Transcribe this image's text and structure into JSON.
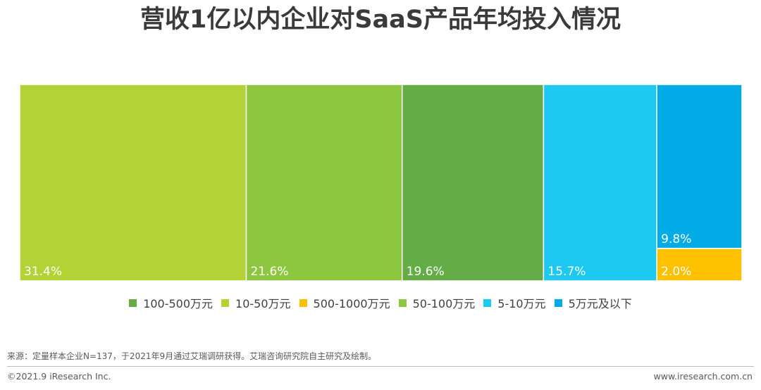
{
  "title": "营收1亿以内企业对SaaS产品年均投入情况",
  "chart_data": {
    "type": "bar",
    "subtype": "stacked-100-percent-horizontal-segments",
    "title": "营收1亿以内企业对SaaS产品年均投入情况",
    "series": [
      {
        "name": "10-50万元",
        "value": 31.4,
        "label": "31.4%",
        "color": "#b2d235"
      },
      {
        "name": "50-100万元",
        "value": 21.6,
        "label": "21.6%",
        "color": "#8dc63f"
      },
      {
        "name": "100-500万元",
        "value": 19.6,
        "label": "19.6%",
        "color": "#64ad46"
      },
      {
        "name": "5-10万元",
        "value": 15.7,
        "label": "15.7%",
        "color": "#1dc8f1"
      },
      {
        "name": "5万元及以下",
        "value": 9.8,
        "label": "9.8%",
        "color": "#00abe6"
      },
      {
        "name": "500-1000万元",
        "value": 2.0,
        "label": "2.0%",
        "color": "#ffc000"
      }
    ],
    "legend_position": "bottom",
    "legend_order": [
      "100-500万元",
      "10-50万元",
      "500-1000万元",
      "50-100万元",
      "5-10万元",
      "5万元及以下"
    ],
    "legend": [
      {
        "label": "100-500万元",
        "color": "#64ad46"
      },
      {
        "label": "10-50万元",
        "color": "#b2d235"
      },
      {
        "label": "500-1000万元",
        "color": "#ffc000"
      },
      {
        "label": "50-100万元",
        "color": "#8dc63f"
      },
      {
        "label": "5-10万元",
        "color": "#1dc8f1"
      },
      {
        "label": "5万元及以下",
        "color": "#00abe6"
      }
    ]
  },
  "footer": {
    "source": "来源：定量样本企业N=137，于2021年9月通过艾瑞调研获得。艾瑞咨询研究院自主研究及绘制。",
    "copyright": "©2021.9 iResearch Inc.",
    "website": "www.iresearch.com.cn"
  }
}
